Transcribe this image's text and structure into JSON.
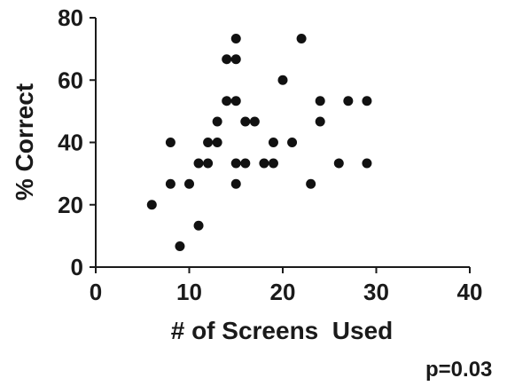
{
  "chart_data": {
    "type": "scatter",
    "title": "",
    "xlabel": "# of Screens  Used",
    "ylabel": "% Correct",
    "xlim": [
      0,
      40
    ],
    "ylim": [
      0,
      80
    ],
    "xticks": [
      0,
      10,
      20,
      30,
      40
    ],
    "yticks": [
      0,
      20,
      40,
      60,
      80
    ],
    "grid": false,
    "marker_color": "#111111",
    "annotation": "p=0.03",
    "points": [
      {
        "x": 6,
        "y": 20
      },
      {
        "x": 8,
        "y": 40
      },
      {
        "x": 8,
        "y": 26.7
      },
      {
        "x": 9,
        "y": 6.7
      },
      {
        "x": 10,
        "y": 26.7
      },
      {
        "x": 11,
        "y": 33.3
      },
      {
        "x": 11,
        "y": 13.3
      },
      {
        "x": 12,
        "y": 40
      },
      {
        "x": 12,
        "y": 33.3
      },
      {
        "x": 13,
        "y": 46.7
      },
      {
        "x": 13,
        "y": 40
      },
      {
        "x": 14,
        "y": 66.7
      },
      {
        "x": 14,
        "y": 53.3
      },
      {
        "x": 15,
        "y": 73.3
      },
      {
        "x": 15,
        "y": 66.7
      },
      {
        "x": 15,
        "y": 53.3
      },
      {
        "x": 15,
        "y": 33.3
      },
      {
        "x": 15,
        "y": 26.7
      },
      {
        "x": 16,
        "y": 46.7
      },
      {
        "x": 16,
        "y": 33.3
      },
      {
        "x": 17,
        "y": 46.7
      },
      {
        "x": 18,
        "y": 33.3
      },
      {
        "x": 19,
        "y": 40
      },
      {
        "x": 19,
        "y": 33.3
      },
      {
        "x": 20,
        "y": 60
      },
      {
        "x": 21,
        "y": 40
      },
      {
        "x": 22,
        "y": 73.3
      },
      {
        "x": 23,
        "y": 26.7
      },
      {
        "x": 24,
        "y": 53.3
      },
      {
        "x": 24,
        "y": 46.7
      },
      {
        "x": 26,
        "y": 33.3
      },
      {
        "x": 27,
        "y": 53.3
      },
      {
        "x": 29,
        "y": 53.3
      },
      {
        "x": 29,
        "y": 33.3
      }
    ]
  }
}
